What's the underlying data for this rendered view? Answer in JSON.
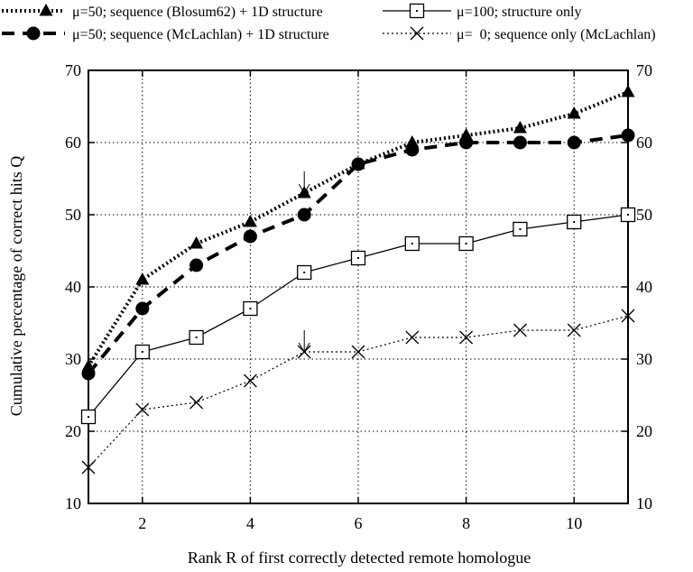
{
  "chart_data": {
    "type": "line",
    "title": "",
    "xlabel": "Rank R of first correctly detected remote homologue",
    "ylabel": "Cumulative percentage of correct hits Q",
    "xlim": [
      1,
      11
    ],
    "ylim": [
      10,
      70
    ],
    "x_ticks": [
      2,
      4,
      6,
      8,
      10
    ],
    "x_tick_labels": [
      "2",
      "4",
      "6",
      "8",
      "10"
    ],
    "y_ticks": [
      10,
      20,
      30,
      40,
      50,
      60,
      70
    ],
    "y_tick_labels": [
      "10",
      "20",
      "30",
      "40",
      "50",
      "60",
      "70"
    ],
    "right_y_axis": true,
    "grid": "dotted",
    "legend_position": "top",
    "x": [
      1,
      2,
      3,
      4,
      5,
      6,
      7,
      8,
      9,
      10,
      11
    ],
    "series": [
      {
        "name": "μ=50; sequence (Blosum62) + 1D structure",
        "marker": "triangle",
        "line": "dotted-thick",
        "values": [
          29,
          41,
          46,
          49,
          53,
          57,
          60,
          61,
          62,
          64,
          67
        ]
      },
      {
        "name": "μ=50; sequence (McLachlan) + 1D structure",
        "marker": "circle",
        "line": "dashed-thick",
        "values": [
          28,
          37,
          43,
          47,
          50,
          57,
          59,
          60,
          60,
          60,
          61
        ]
      },
      {
        "name": "μ=100; structure only",
        "marker": "square-dot",
        "line": "solid-thin",
        "values": [
          22,
          31,
          33,
          37,
          42,
          44,
          46,
          46,
          48,
          49,
          50
        ]
      },
      {
        "name": "μ=  0; sequence only (McLachlan)",
        "marker": "x",
        "line": "dotted-thin",
        "values": [
          15,
          23,
          24,
          27,
          31,
          31,
          33,
          33,
          34,
          34,
          36
        ]
      }
    ],
    "annotations": [
      {
        "type": "arrow-down",
        "x": 5,
        "y": 56
      },
      {
        "type": "arrow-down",
        "x": 5,
        "y": 34
      }
    ]
  }
}
